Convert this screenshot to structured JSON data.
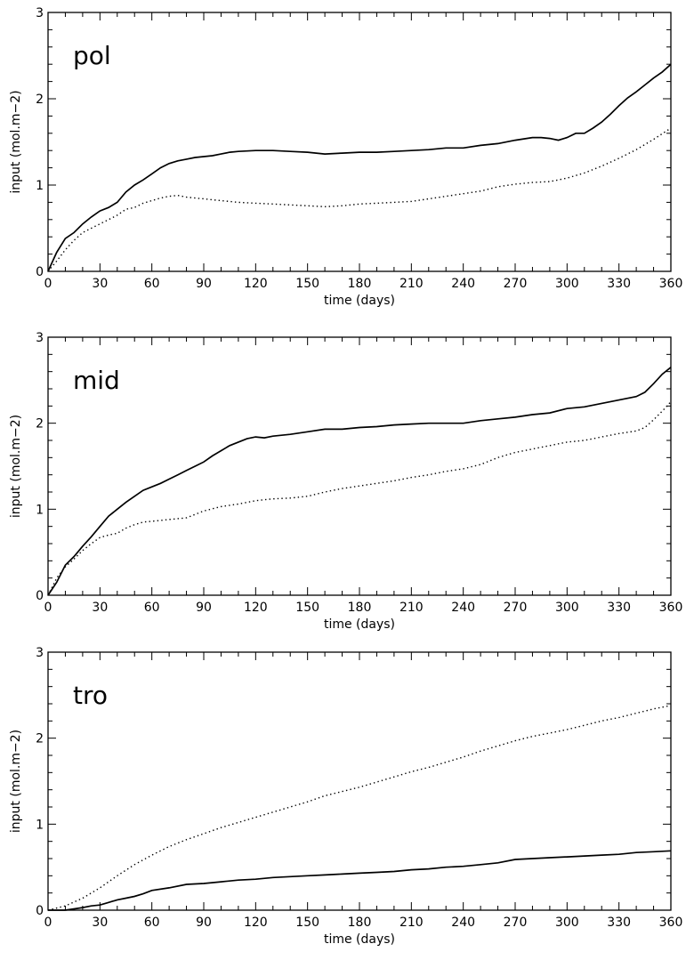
{
  "chart_data": [
    {
      "type": "line",
      "title": "pol",
      "xlabel": "time (days)",
      "ylabel": "input (mol.m−2)",
      "xlim": [
        0,
        360
      ],
      "ylim": [
        0,
        3
      ],
      "xticks": [
        "0",
        "30",
        "60",
        "90",
        "120",
        "150",
        "180",
        "210",
        "240",
        "270",
        "300",
        "330",
        "360"
      ],
      "yticks": [
        "0",
        "1",
        "2",
        "3"
      ],
      "grid": false,
      "series": [
        {
          "style": "solid",
          "x": [
            0,
            5,
            10,
            15,
            20,
            25,
            30,
            35,
            40,
            45,
            50,
            55,
            60,
            65,
            70,
            75,
            80,
            85,
            90,
            95,
            100,
            105,
            110,
            120,
            130,
            140,
            150,
            160,
            170,
            180,
            190,
            200,
            210,
            220,
            230,
            240,
            250,
            260,
            270,
            280,
            285,
            290,
            295,
            300,
            305,
            310,
            315,
            320,
            325,
            330,
            335,
            340,
            345,
            350,
            355,
            360
          ],
          "y": [
            0.0,
            0.22,
            0.38,
            0.45,
            0.55,
            0.63,
            0.7,
            0.74,
            0.8,
            0.92,
            1.0,
            1.06,
            1.13,
            1.2,
            1.25,
            1.28,
            1.3,
            1.32,
            1.33,
            1.34,
            1.36,
            1.38,
            1.39,
            1.4,
            1.4,
            1.39,
            1.38,
            1.36,
            1.37,
            1.38,
            1.38,
            1.39,
            1.4,
            1.41,
            1.43,
            1.43,
            1.46,
            1.48,
            1.52,
            1.55,
            1.55,
            1.54,
            1.52,
            1.55,
            1.6,
            1.6,
            1.66,
            1.73,
            1.82,
            1.92,
            2.01,
            2.08,
            2.16,
            2.24,
            2.31,
            2.4
          ]
        },
        {
          "style": "dotted",
          "x": [
            0,
            5,
            10,
            15,
            20,
            25,
            30,
            35,
            40,
            45,
            50,
            55,
            60,
            65,
            70,
            75,
            80,
            90,
            100,
            110,
            120,
            130,
            140,
            150,
            160,
            170,
            180,
            190,
            200,
            210,
            220,
            230,
            240,
            250,
            260,
            270,
            280,
            290,
            300,
            310,
            320,
            330,
            340,
            350,
            360
          ],
          "y": [
            0.0,
            0.12,
            0.25,
            0.36,
            0.45,
            0.5,
            0.55,
            0.6,
            0.65,
            0.72,
            0.74,
            0.79,
            0.82,
            0.85,
            0.87,
            0.88,
            0.86,
            0.84,
            0.82,
            0.8,
            0.79,
            0.78,
            0.77,
            0.76,
            0.75,
            0.76,
            0.78,
            0.79,
            0.8,
            0.81,
            0.84,
            0.87,
            0.9,
            0.93,
            0.98,
            1.01,
            1.03,
            1.04,
            1.08,
            1.14,
            1.22,
            1.31,
            1.41,
            1.53,
            1.66
          ]
        }
      ]
    },
    {
      "type": "line",
      "title": "mid",
      "xlabel": "time (days)",
      "ylabel": "input (mol.m−2)",
      "xlim": [
        0,
        360
      ],
      "ylim": [
        0,
        3
      ],
      "xticks": [
        "0",
        "30",
        "60",
        "90",
        "120",
        "150",
        "180",
        "210",
        "240",
        "270",
        "300",
        "330",
        "360"
      ],
      "yticks": [
        "0",
        "1",
        "2",
        "3"
      ],
      "grid": false,
      "series": [
        {
          "style": "solid",
          "x": [
            0,
            5,
            10,
            15,
            20,
            25,
            30,
            35,
            40,
            45,
            50,
            55,
            60,
            65,
            70,
            75,
            80,
            85,
            90,
            95,
            100,
            105,
            110,
            115,
            120,
            125,
            130,
            140,
            150,
            160,
            170,
            180,
            190,
            200,
            210,
            220,
            230,
            240,
            250,
            260,
            270,
            280,
            290,
            300,
            310,
            320,
            330,
            340,
            345,
            350,
            355,
            360
          ],
          "y": [
            0.0,
            0.15,
            0.35,
            0.45,
            0.57,
            0.68,
            0.8,
            0.92,
            1.0,
            1.08,
            1.15,
            1.22,
            1.26,
            1.3,
            1.35,
            1.4,
            1.45,
            1.5,
            1.55,
            1.62,
            1.68,
            1.74,
            1.78,
            1.82,
            1.84,
            1.83,
            1.85,
            1.87,
            1.9,
            1.93,
            1.93,
            1.95,
            1.96,
            1.98,
            1.99,
            2.0,
            2.0,
            2.0,
            2.03,
            2.05,
            2.07,
            2.1,
            2.12,
            2.17,
            2.19,
            2.23,
            2.27,
            2.31,
            2.36,
            2.46,
            2.57,
            2.65
          ]
        },
        {
          "style": "dotted",
          "x": [
            0,
            5,
            10,
            15,
            20,
            25,
            30,
            35,
            40,
            45,
            50,
            55,
            60,
            70,
            80,
            90,
            100,
            110,
            120,
            130,
            140,
            150,
            160,
            170,
            180,
            190,
            200,
            210,
            220,
            230,
            240,
            250,
            260,
            270,
            280,
            290,
            300,
            310,
            320,
            330,
            340,
            345,
            350,
            355,
            360
          ],
          "y": [
            0.0,
            0.2,
            0.33,
            0.42,
            0.52,
            0.6,
            0.67,
            0.7,
            0.72,
            0.78,
            0.82,
            0.85,
            0.86,
            0.88,
            0.9,
            0.98,
            1.03,
            1.06,
            1.1,
            1.12,
            1.13,
            1.15,
            1.2,
            1.24,
            1.27,
            1.3,
            1.33,
            1.37,
            1.4,
            1.44,
            1.47,
            1.52,
            1.6,
            1.66,
            1.7,
            1.74,
            1.78,
            1.8,
            1.84,
            1.88,
            1.91,
            1.95,
            2.04,
            2.14,
            2.25
          ]
        }
      ]
    },
    {
      "type": "line",
      "title": "tro",
      "xlabel": "time (days)",
      "ylabel": "input (mol.m−2)",
      "xlim": [
        0,
        360
      ],
      "ylim": [
        0,
        3
      ],
      "xticks": [
        "0",
        "30",
        "60",
        "90",
        "120",
        "150",
        "180",
        "210",
        "240",
        "270",
        "300",
        "330",
        "360"
      ],
      "yticks": [
        "0",
        "1",
        "2",
        "3"
      ],
      "grid": false,
      "series": [
        {
          "style": "solid",
          "x": [
            0,
            10,
            20,
            25,
            30,
            35,
            40,
            45,
            50,
            55,
            60,
            70,
            80,
            90,
            100,
            110,
            120,
            130,
            140,
            150,
            160,
            170,
            180,
            190,
            200,
            210,
            220,
            230,
            240,
            250,
            260,
            270,
            280,
            290,
            300,
            310,
            320,
            330,
            340,
            350,
            360
          ],
          "y": [
            0.0,
            0.0,
            0.03,
            0.05,
            0.06,
            0.09,
            0.12,
            0.14,
            0.16,
            0.19,
            0.23,
            0.26,
            0.3,
            0.31,
            0.33,
            0.35,
            0.36,
            0.38,
            0.39,
            0.4,
            0.41,
            0.42,
            0.43,
            0.44,
            0.45,
            0.47,
            0.48,
            0.5,
            0.51,
            0.53,
            0.55,
            0.59,
            0.6,
            0.61,
            0.62,
            0.63,
            0.64,
            0.65,
            0.67,
            0.68,
            0.69
          ]
        },
        {
          "style": "dotted",
          "x": [
            0,
            10,
            20,
            30,
            40,
            50,
            60,
            70,
            80,
            90,
            100,
            110,
            120,
            130,
            140,
            150,
            160,
            170,
            180,
            190,
            200,
            210,
            220,
            230,
            240,
            250,
            260,
            270,
            280,
            290,
            300,
            310,
            320,
            330,
            340,
            350,
            360
          ],
          "y": [
            0.0,
            0.05,
            0.14,
            0.26,
            0.4,
            0.53,
            0.64,
            0.74,
            0.82,
            0.89,
            0.96,
            1.02,
            1.08,
            1.14,
            1.2,
            1.26,
            1.33,
            1.38,
            1.43,
            1.49,
            1.55,
            1.61,
            1.66,
            1.72,
            1.78,
            1.85,
            1.91,
            1.97,
            2.02,
            2.06,
            2.1,
            2.15,
            2.2,
            2.24,
            2.29,
            2.34,
            2.38
          ]
        }
      ]
    }
  ]
}
